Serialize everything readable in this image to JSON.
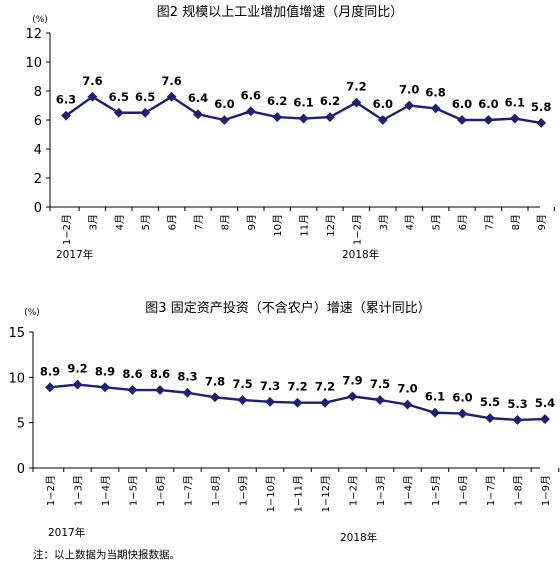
{
  "chart_data": [
    {
      "type": "line",
      "title": "图2   规模以上工业增加值增速（月度同比）",
      "unit": "(%)",
      "ylim": [
        0,
        12
      ],
      "yticks": [
        "0",
        "2",
        "4",
        "6",
        "8",
        "10",
        "12"
      ],
      "categories": [
        "1−2月",
        "3月",
        "4月",
        "5月",
        "6月",
        "7月",
        "8月",
        "9月",
        "10月",
        "11月",
        "12月",
        "1−2月",
        "3月",
        "4月",
        "5月",
        "6月",
        "7月",
        "8月",
        "9月"
      ],
      "values": [
        6.3,
        7.6,
        6.5,
        6.5,
        7.6,
        6.4,
        6.0,
        6.6,
        6.2,
        6.1,
        6.2,
        7.2,
        6.0,
        7.0,
        6.8,
        6.0,
        6.0,
        6.1,
        5.8
      ],
      "labels": [
        "6.3",
        "7.6",
        "6.5",
        "6.5",
        "7.6",
        "6.4",
        "6.0",
        "6.6",
        "6.2",
        "6.1",
        "6.2",
        "7.2",
        "6.0",
        "7.0",
        "6.8",
        "6.0",
        "6.0",
        "6.1",
        "5.8"
      ],
      "years": [
        "2017年",
        "2018年"
      ],
      "line_color": "#1f1f73",
      "grid": false
    },
    {
      "type": "line",
      "title": "图3    固定资产投资（不含农户）增速（累计同比）",
      "unit": "(%)",
      "ylim": [
        0,
        15
      ],
      "yticks": [
        "0",
        "5",
        "10",
        "15"
      ],
      "categories": [
        "1−2月",
        "1−3月",
        "1−4月",
        "1−5月",
        "1−6月",
        "1−7月",
        "1−8月",
        "1−9月",
        "1−10月",
        "1−11月",
        "1−12月",
        "1−2月",
        "1−3月",
        "1−4月",
        "1−5月",
        "1−6月",
        "1−7月",
        "1−8月",
        "1−9月"
      ],
      "values": [
        8.9,
        9.2,
        8.9,
        8.6,
        8.6,
        8.3,
        7.8,
        7.5,
        7.3,
        7.2,
        7.2,
        7.9,
        7.5,
        7.0,
        6.1,
        6.0,
        5.5,
        5.3,
        5.4
      ],
      "labels": [
        "8.9",
        "9.2",
        "8.9",
        "8.6",
        "8.6",
        "8.3",
        "7.8",
        "7.5",
        "7.3",
        "7.2",
        "7.2",
        "7.9",
        "7.5",
        "7.0",
        "6.1",
        "6.0",
        "5.5",
        "5.3",
        "5.4"
      ],
      "years": [
        "2017年",
        "2018年"
      ],
      "line_color": "#1f1f73",
      "grid": false
    }
  ],
  "footnote": "注：以上数据为当期快报数据。"
}
